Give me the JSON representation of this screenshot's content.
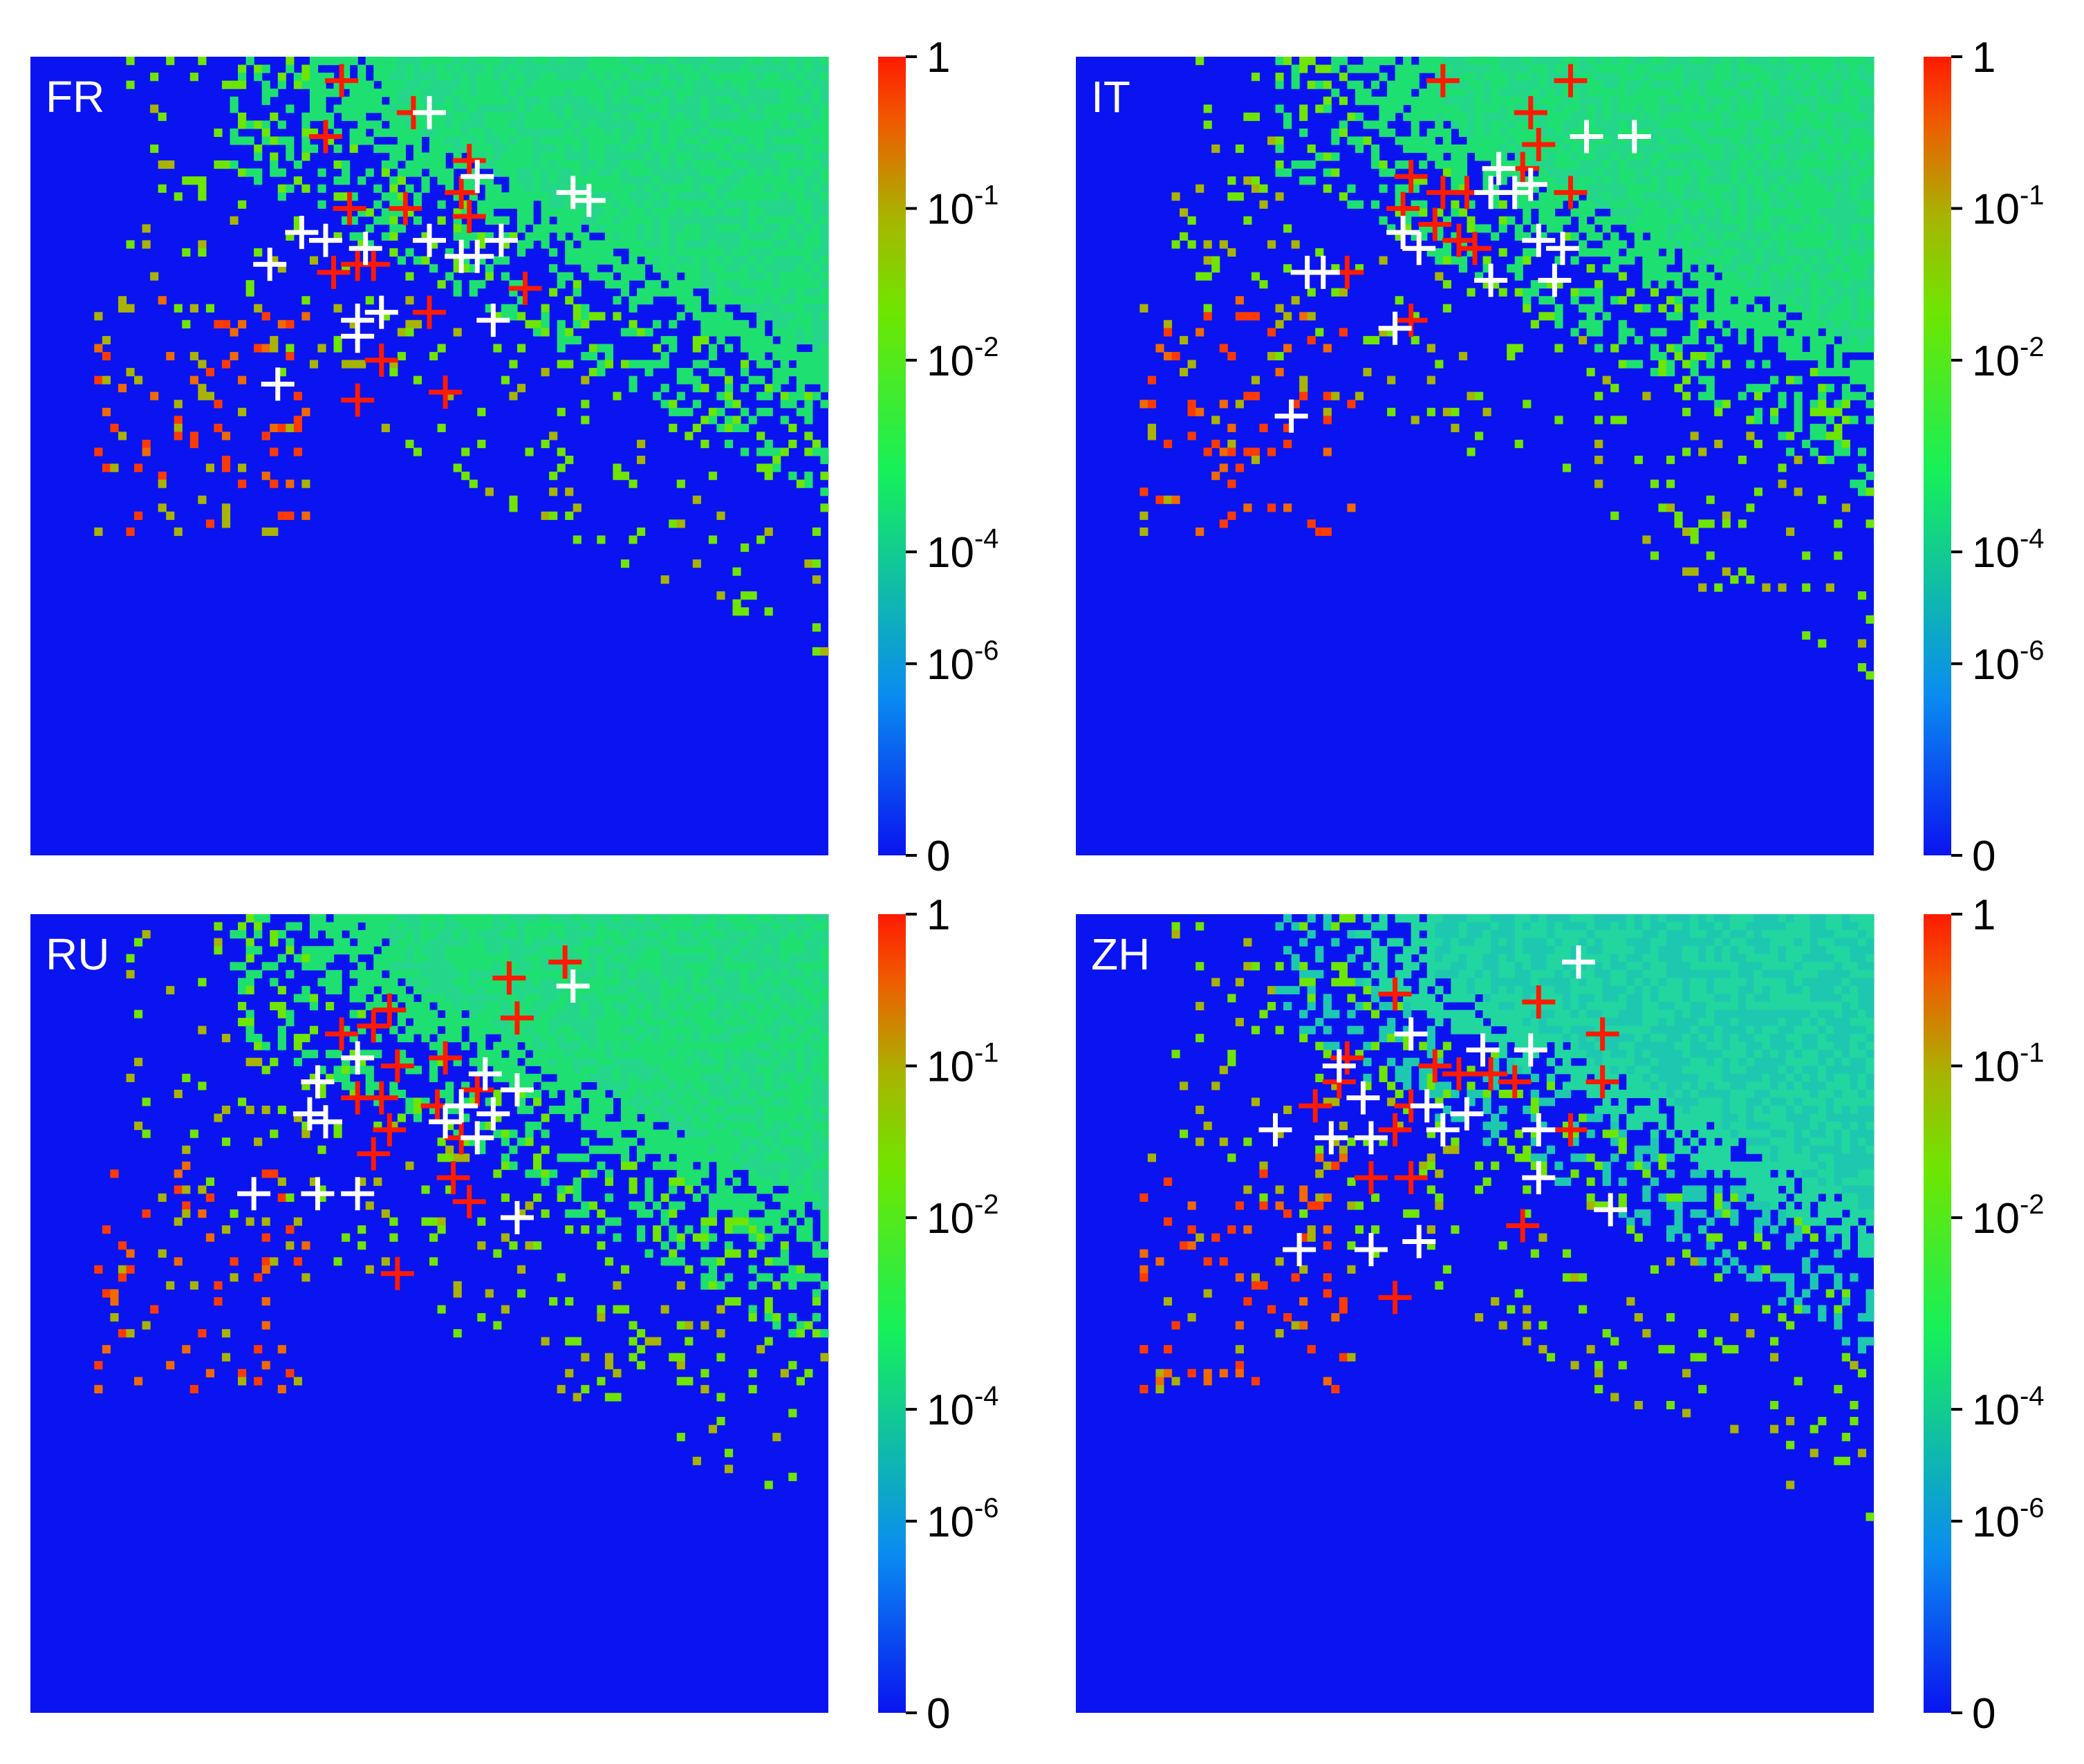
{
  "chart_data": [
    {
      "type": "heatmap",
      "panel_label": "FR",
      "colorbar": {
        "scale": "log",
        "range": [
          0,
          1
        ],
        "tick_labels": [
          "1",
          "10-1",
          "10-2",
          "10-4",
          "10-6",
          "0"
        ]
      },
      "colors": {
        "zero": "#0a14f0",
        "low": "#0a8cf0",
        "mid": "#16f05a",
        "high_mid": "#a8b400",
        "max": "#ff1a00",
        "red_markers": "#ff1a00",
        "white_markers": "#ffffff"
      },
      "markers_red": [
        [
          0.39,
          0.03
        ],
        [
          0.48,
          0.07
        ],
        [
          0.37,
          0.1
        ],
        [
          0.55,
          0.13
        ],
        [
          0.54,
          0.17
        ],
        [
          0.4,
          0.19
        ],
        [
          0.47,
          0.19
        ],
        [
          0.55,
          0.2
        ],
        [
          0.41,
          0.26
        ],
        [
          0.43,
          0.26
        ],
        [
          0.38,
          0.27
        ],
        [
          0.62,
          0.29
        ],
        [
          0.5,
          0.32
        ],
        [
          0.44,
          0.38
        ],
        [
          0.52,
          0.42
        ],
        [
          0.41,
          0.43
        ]
      ],
      "markers_white": [
        [
          0.5,
          0.07
        ],
        [
          0.56,
          0.15
        ],
        [
          0.68,
          0.17
        ],
        [
          0.7,
          0.18
        ],
        [
          0.34,
          0.22
        ],
        [
          0.37,
          0.23
        ],
        [
          0.42,
          0.24
        ],
        [
          0.5,
          0.23
        ],
        [
          0.59,
          0.23
        ],
        [
          0.54,
          0.25
        ],
        [
          0.56,
          0.25
        ],
        [
          0.3,
          0.26
        ],
        [
          0.44,
          0.32
        ],
        [
          0.41,
          0.33
        ],
        [
          0.58,
          0.33
        ],
        [
          0.41,
          0.35
        ],
        [
          0.31,
          0.41
        ]
      ]
    },
    {
      "type": "heatmap",
      "panel_label": "IT",
      "colorbar": {
        "scale": "log",
        "range": [
          0,
          1
        ],
        "tick_labels": [
          "1",
          "10-1",
          "10-2",
          "10-4",
          "10-6",
          "0"
        ]
      },
      "colors": {
        "zero": "#0a14f0",
        "low": "#0a8cf0",
        "mid": "#16f05a",
        "high_mid": "#a8b400",
        "max": "#ff1a00",
        "red_markers": "#ff1a00",
        "white_markers": "#ffffff"
      },
      "markers_red": [
        [
          0.46,
          0.03
        ],
        [
          0.62,
          0.03
        ],
        [
          0.57,
          0.07
        ],
        [
          0.58,
          0.11
        ],
        [
          0.56,
          0.14
        ],
        [
          0.42,
          0.15
        ],
        [
          0.46,
          0.17
        ],
        [
          0.49,
          0.17
        ],
        [
          0.62,
          0.17
        ],
        [
          0.41,
          0.19
        ],
        [
          0.45,
          0.21
        ],
        [
          0.48,
          0.23
        ],
        [
          0.43,
          0.24
        ],
        [
          0.5,
          0.24
        ],
        [
          0.34,
          0.27
        ],
        [
          0.42,
          0.33
        ]
      ],
      "markers_white": [
        [
          0.64,
          0.1
        ],
        [
          0.7,
          0.1
        ],
        [
          0.53,
          0.14
        ],
        [
          0.52,
          0.17
        ],
        [
          0.55,
          0.17
        ],
        [
          0.57,
          0.16
        ],
        [
          0.41,
          0.22
        ],
        [
          0.43,
          0.24
        ],
        [
          0.58,
          0.23
        ],
        [
          0.61,
          0.24
        ],
        [
          0.29,
          0.27
        ],
        [
          0.31,
          0.27
        ],
        [
          0.52,
          0.28
        ],
        [
          0.6,
          0.28
        ],
        [
          0.4,
          0.34
        ],
        [
          0.27,
          0.45
        ]
      ]
    },
    {
      "type": "heatmap",
      "panel_label": "RU",
      "colorbar": {
        "scale": "log",
        "range": [
          0,
          1
        ],
        "tick_labels": [
          "1",
          "10-1",
          "10-2",
          "10-4",
          "10-6",
          "0"
        ]
      },
      "colors": {
        "zero": "#0a14f0",
        "low": "#0a8cf0",
        "mid": "#16f05a",
        "high_mid": "#a8b400",
        "max": "#ff1a00",
        "red_markers": "#ff1a00",
        "white_markers": "#ffffff"
      },
      "markers_red": [
        [
          0.67,
          0.06
        ],
        [
          0.6,
          0.08
        ],
        [
          0.61,
          0.13
        ],
        [
          0.45,
          0.12
        ],
        [
          0.43,
          0.14
        ],
        [
          0.39,
          0.15
        ],
        [
          0.46,
          0.19
        ],
        [
          0.52,
          0.18
        ],
        [
          0.41,
          0.23
        ],
        [
          0.44,
          0.23
        ],
        [
          0.51,
          0.24
        ],
        [
          0.56,
          0.22
        ],
        [
          0.45,
          0.27
        ],
        [
          0.43,
          0.3
        ],
        [
          0.54,
          0.28
        ],
        [
          0.53,
          0.33
        ],
        [
          0.55,
          0.36
        ],
        [
          0.46,
          0.45
        ]
      ],
      "markers_white": [
        [
          0.68,
          0.09
        ],
        [
          0.41,
          0.18
        ],
        [
          0.36,
          0.21
        ],
        [
          0.57,
          0.2
        ],
        [
          0.61,
          0.22
        ],
        [
          0.35,
          0.25
        ],
        [
          0.37,
          0.26
        ],
        [
          0.52,
          0.26
        ],
        [
          0.54,
          0.24
        ],
        [
          0.58,
          0.25
        ],
        [
          0.56,
          0.28
        ],
        [
          0.28,
          0.35
        ],
        [
          0.36,
          0.35
        ],
        [
          0.41,
          0.35
        ],
        [
          0.61,
          0.38
        ]
      ]
    },
    {
      "type": "heatmap",
      "panel_label": "ZH",
      "colorbar": {
        "scale": "log",
        "range": [
          0,
          1
        ],
        "tick_labels": [
          "1",
          "10-1",
          "10-2",
          "10-4",
          "10-6",
          "0"
        ]
      },
      "colors": {
        "zero": "#0a14f0",
        "low": "#0a8cf0",
        "mid": "#16f05a",
        "high_mid": "#a8b400",
        "max": "#ff1a00",
        "red_markers": "#ff1a00",
        "white_markers": "#ffffff"
      },
      "markers_red": [
        [
          0.4,
          0.1
        ],
        [
          0.58,
          0.11
        ],
        [
          0.66,
          0.15
        ],
        [
          0.34,
          0.18
        ],
        [
          0.45,
          0.19
        ],
        [
          0.48,
          0.2
        ],
        [
          0.52,
          0.2
        ],
        [
          0.33,
          0.21
        ],
        [
          0.55,
          0.21
        ],
        [
          0.66,
          0.21
        ],
        [
          0.3,
          0.24
        ],
        [
          0.42,
          0.24
        ],
        [
          0.4,
          0.27
        ],
        [
          0.62,
          0.27
        ],
        [
          0.37,
          0.33
        ],
        [
          0.42,
          0.33
        ],
        [
          0.56,
          0.39
        ],
        [
          0.4,
          0.48
        ]
      ],
      "markers_white": [
        [
          0.63,
          0.06
        ],
        [
          0.42,
          0.15
        ],
        [
          0.51,
          0.17
        ],
        [
          0.57,
          0.17
        ],
        [
          0.33,
          0.19
        ],
        [
          0.36,
          0.23
        ],
        [
          0.44,
          0.24
        ],
        [
          0.49,
          0.25
        ],
        [
          0.25,
          0.27
        ],
        [
          0.32,
          0.28
        ],
        [
          0.37,
          0.28
        ],
        [
          0.46,
          0.27
        ],
        [
          0.58,
          0.27
        ],
        [
          0.58,
          0.33
        ],
        [
          0.67,
          0.37
        ],
        [
          0.28,
          0.42
        ],
        [
          0.37,
          0.42
        ],
        [
          0.43,
          0.41
        ]
      ]
    }
  ]
}
